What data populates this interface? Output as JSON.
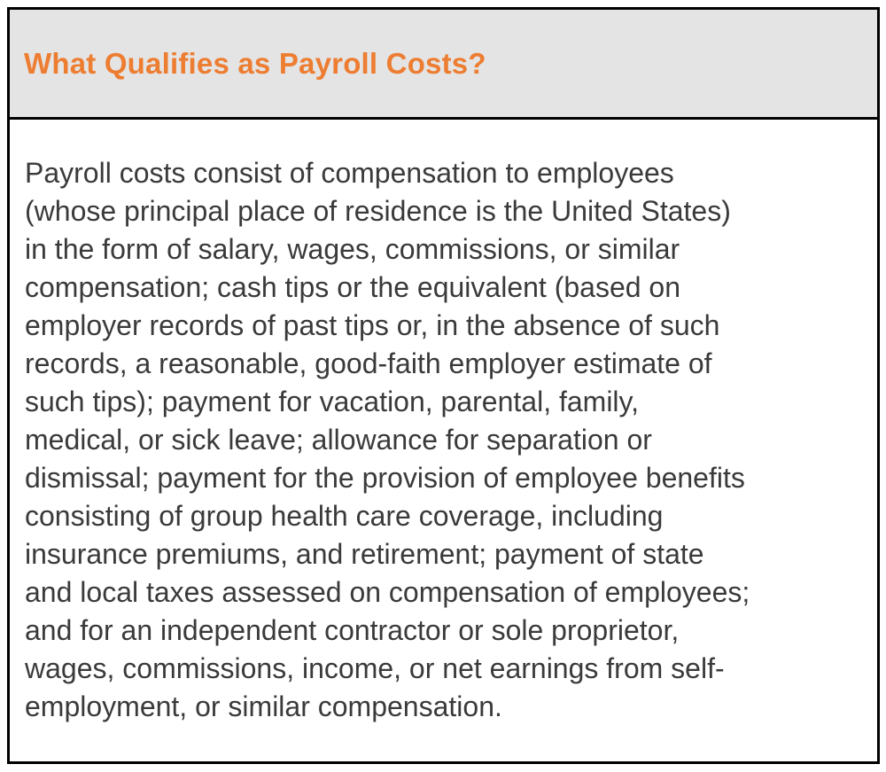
{
  "callout": {
    "title": "What Qualifies as Payroll Costs?",
    "body_lines": [
      "Payroll costs consist of compensation to employees",
      "(whose principal place of residence is the United States)",
      "in the form of salary, wages, commissions, or similar",
      "compensation; cash tips or the equivalent (based on",
      "employer records of past tips or, in the absence of such",
      "records, a reasonable, good-faith employer estimate of",
      "such tips); payment for vacation, parental, family,",
      "medical, or sick leave; allowance for separation or",
      "dismissal; payment for the provision of employee benefits",
      "consisting of group health care coverage, including",
      "insurance premiums, and retirement; payment of state",
      "and local taxes assessed on compensation of employees;",
      "and for an independent contractor or sole proprietor,",
      "wages, commissions, income, or net earnings from self-",
      "employment, or similar compensation."
    ],
    "colors": {
      "title_accent": "#ed7d31",
      "header_background": "#e4e4e4",
      "border": "#000000",
      "body_text": "#3a3a3a"
    }
  }
}
